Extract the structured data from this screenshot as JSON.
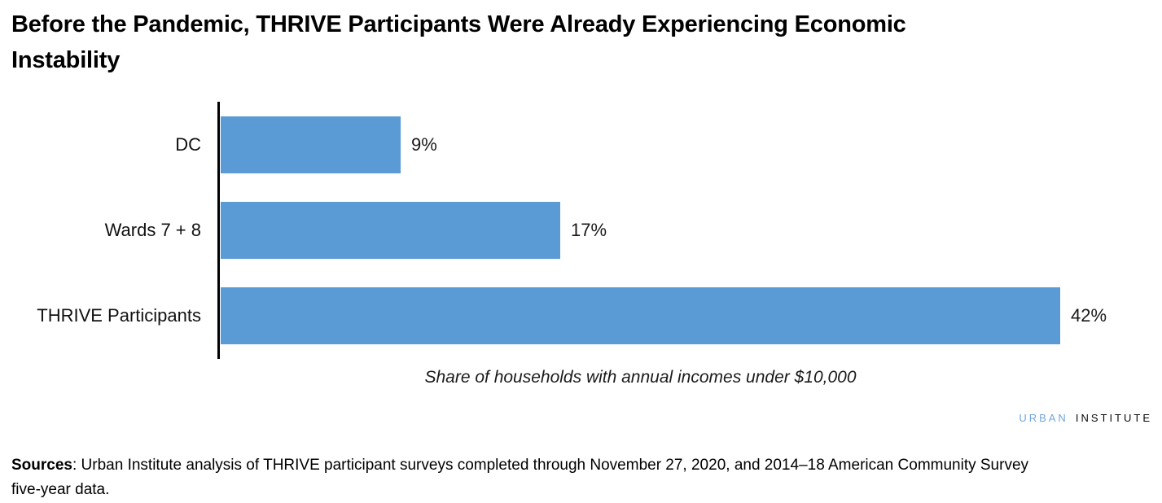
{
  "title": {
    "line1": "Before the Pandemic, THRIVE Participants Were Already Experiencing Economic",
    "line2": "Instability"
  },
  "chart_data": {
    "type": "bar",
    "orientation": "horizontal",
    "title": "Before the Pandemic, THRIVE Participants Were Already Experiencing Economic Instability",
    "categories": [
      "DC",
      "Wards 7 + 8",
      "THRIVE Participants"
    ],
    "values": [
      9,
      17,
      42
    ],
    "value_labels": [
      "9%",
      "17%",
      "42%"
    ],
    "xlabel": "Share of households with annual incomes under $10,000",
    "xlim": [
      0,
      45
    ],
    "grid": false,
    "legend": false,
    "data_labels": "outside-end",
    "bar_color": "#5B9BD5",
    "axis_color": "#000000"
  },
  "logo": {
    "urban": "URBAN",
    "institute": "INSTITUTE",
    "urban_color": "#70A5DE",
    "institute_color": "#0A0A0A"
  },
  "footer": {
    "sources_label": "Sources",
    "sources_line1": ": Urban Institute analysis of THRIVE participant surveys completed through November 27, 2020, and 2014–18 American Community Survey",
    "sources_line2": "five-year data."
  }
}
